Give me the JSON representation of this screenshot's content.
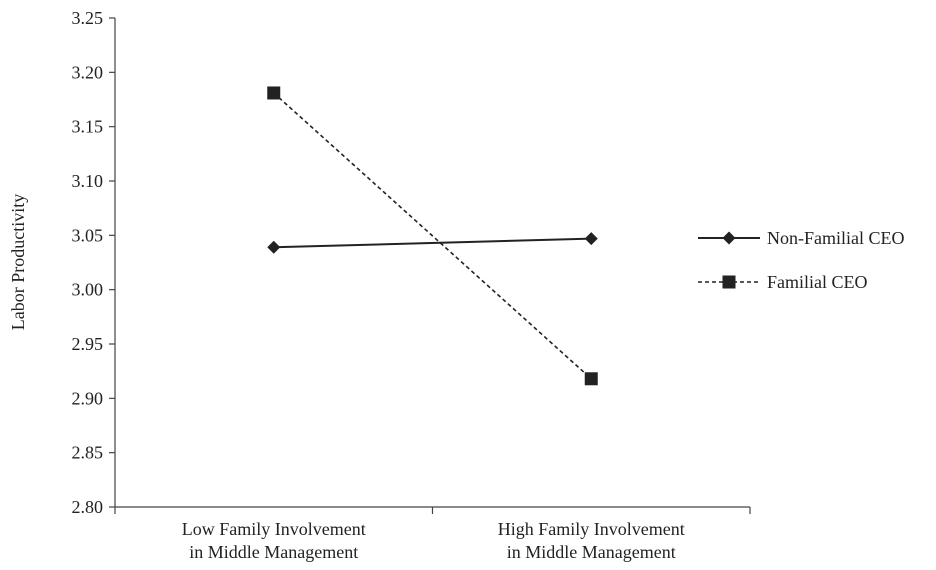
{
  "chart_data": {
    "type": "line",
    "title": "",
    "ylabel": "Labor Productivity",
    "xlabel": "",
    "ylim": [
      2.8,
      3.25
    ],
    "yticks": [
      "2.80",
      "2.85",
      "2.90",
      "2.95",
      "3.00",
      "3.05",
      "3.10",
      "3.15",
      "3.20",
      "3.25"
    ],
    "categories": [
      [
        "Low Family Involvement",
        "in Middle Management"
      ],
      [
        "High Family Involvement",
        "in Middle Management"
      ]
    ],
    "series": [
      {
        "name": "Non-Familial CEO",
        "values": [
          3.039,
          3.047
        ],
        "line": "solid",
        "marker": "diamond",
        "color": "#222222"
      },
      {
        "name": "Familial CEO",
        "values": [
          3.181,
          2.918
        ],
        "line": "dashed",
        "marker": "square",
        "color": "#222222"
      }
    ],
    "grid": false,
    "legend": "right"
  }
}
